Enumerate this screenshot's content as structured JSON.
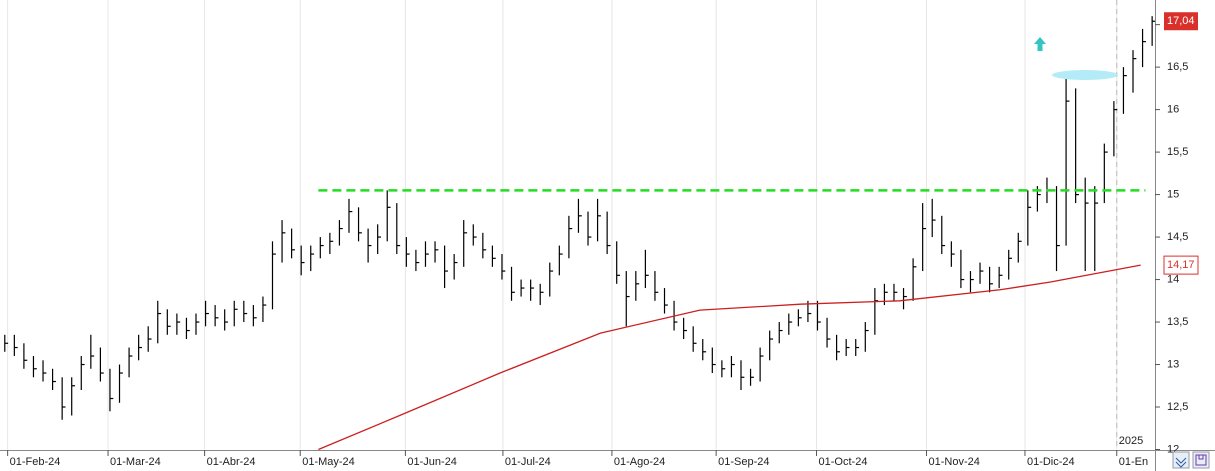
{
  "chart_data": {
    "type": "hlc",
    "color": "#000000",
    "ylim": [
      12,
      17.29
    ],
    "xlim": [
      -0.5,
      120.3
    ],
    "yticks": [
      12,
      {
        "value": 12.5,
        "label": "12,5"
      },
      13,
      {
        "value": 13.5,
        "label": "13,5"
      },
      14,
      {
        "value": 14.5,
        "label": "14,5"
      },
      15,
      {
        "value": 15.5,
        "label": "15,5"
      },
      16,
      {
        "value": 16.5,
        "label": "16,5"
      },
      17
    ],
    "xticks": [
      {
        "value": 0.3,
        "label": "01-Feb-24"
      },
      {
        "value": 10.8,
        "label": "01-Mar-24"
      },
      {
        "value": 20.9,
        "label": "01-Abr-24"
      },
      {
        "value": 30.9,
        "label": "01-May-24"
      },
      {
        "value": 41.9,
        "label": "01-Jun-24"
      },
      {
        "value": 52.1,
        "label": "01-Jul-24"
      },
      {
        "value": 63.5,
        "label": "01-Ago-24"
      },
      {
        "value": 74.4,
        "label": "01-Sep-24"
      },
      {
        "value": 84.9,
        "label": "01-Oct-24"
      },
      {
        "value": 96.4,
        "label": "01-Nov-24"
      },
      {
        "value": 106.7,
        "label": "01-Dic-24"
      },
      {
        "value": 116.3,
        "label": "01-En"
      }
    ],
    "year_label": {
      "value": 116.3,
      "label": "2025"
    },
    "high": [
      13.35,
      13.35,
      13.25,
      13.1,
      13.05,
      12.95,
      12.85,
      12.85,
      13.1,
      13.35,
      13.2,
      12.95,
      13.0,
      13.2,
      13.35,
      13.45,
      13.75,
      13.65,
      13.6,
      13.55,
      13.6,
      13.75,
      13.7,
      13.65,
      13.75,
      13.75,
      13.7,
      13.8,
      14.45,
      14.7,
      14.6,
      14.4,
      14.4,
      14.5,
      14.55,
      14.7,
      14.95,
      14.85,
      14.6,
      14.65,
      15.05,
      14.9,
      14.5,
      14.35,
      14.45,
      14.45,
      14.4,
      14.3,
      14.7,
      14.65,
      14.55,
      14.4,
      14.3,
      14.15,
      14.0,
      14.0,
      13.95,
      14.2,
      14.4,
      14.75,
      14.95,
      14.8,
      14.95,
      14.8,
      14.45,
      14.1,
      14.1,
      14.35,
      14.1,
      13.9,
      13.75,
      13.55,
      13.45,
      13.3,
      13.2,
      13.05,
      13.1,
      13.05,
      12.95,
      13.2,
      13.4,
      13.5,
      13.6,
      13.65,
      13.75,
      13.75,
      13.55,
      13.35,
      13.3,
      13.3,
      13.5,
      13.9,
      13.95,
      13.95,
      13.9,
      14.25,
      14.9,
      14.95,
      14.75,
      14.45,
      14.35,
      14.1,
      14.2,
      14.15,
      14.15,
      14.35,
      14.55,
      15.05,
      15.1,
      15.2,
      15.1,
      16.4,
      16.25,
      15.2,
      15.1,
      15.6,
      16.1,
      16.5,
      16.7,
      16.95,
      17.1
    ],
    "low": [
      13.15,
      13.1,
      12.95,
      12.85,
      12.8,
      12.7,
      12.35,
      12.4,
      12.7,
      12.95,
      12.8,
      12.45,
      12.55,
      12.85,
      13.05,
      13.15,
      13.25,
      13.35,
      13.35,
      13.3,
      13.35,
      13.45,
      13.45,
      13.4,
      13.45,
      13.5,
      13.45,
      13.5,
      13.65,
      14.2,
      14.25,
      14.05,
      14.1,
      14.25,
      14.3,
      14.4,
      14.55,
      14.45,
      14.2,
      14.3,
      14.45,
      14.3,
      14.15,
      14.1,
      14.15,
      14.2,
      13.9,
      14.0,
      14.15,
      14.4,
      14.25,
      14.15,
      14.0,
      13.75,
      13.8,
      13.75,
      13.7,
      13.8,
      14.05,
      14.25,
      14.55,
      14.4,
      14.45,
      14.3,
      13.95,
      13.45,
      13.75,
      13.9,
      13.75,
      13.6,
      13.4,
      13.3,
      13.15,
      13.05,
      12.9,
      12.85,
      12.85,
      12.7,
      12.75,
      12.8,
      13.05,
      13.25,
      13.35,
      13.45,
      13.5,
      13.4,
      13.2,
      13.05,
      13.1,
      13.1,
      13.15,
      13.35,
      13.7,
      13.75,
      13.65,
      13.75,
      14.1,
      14.5,
      14.3,
      14.15,
      13.9,
      13.85,
      13.95,
      13.85,
      13.9,
      14.0,
      14.2,
      14.4,
      14.8,
      14.9,
      14.1,
      14.4,
      14.9,
      14.1,
      14.1,
      14.9,
      15.45,
      15.95,
      16.2,
      16.5,
      16.75
    ],
    "close": [
      13.25,
      13.2,
      13.05,
      12.95,
      12.9,
      12.8,
      12.5,
      12.75,
      13.0,
      13.1,
      12.9,
      12.6,
      12.9,
      13.1,
      13.2,
      13.3,
      13.6,
      13.45,
      13.5,
      13.4,
      13.5,
      13.6,
      13.55,
      13.5,
      13.65,
      13.6,
      13.55,
      13.7,
      14.3,
      14.55,
      14.35,
      14.2,
      14.3,
      14.4,
      14.45,
      14.6,
      14.8,
      14.55,
      14.4,
      14.5,
      14.85,
      14.4,
      14.3,
      14.2,
      14.3,
      14.35,
      14.1,
      14.2,
      14.55,
      14.5,
      14.35,
      14.25,
      14.1,
      13.85,
      13.9,
      13.9,
      13.85,
      14.1,
      14.3,
      14.6,
      14.75,
      14.5,
      14.75,
      14.4,
      14.05,
      13.8,
      13.95,
      14.05,
      13.85,
      13.7,
      13.5,
      13.4,
      13.25,
      13.15,
      13.0,
      12.95,
      13.0,
      12.85,
      12.85,
      13.1,
      13.3,
      13.4,
      13.5,
      13.55,
      13.6,
      13.5,
      13.3,
      13.15,
      13.2,
      13.2,
      13.4,
      13.75,
      13.85,
      13.85,
      13.8,
      14.15,
      14.6,
      14.7,
      14.4,
      14.3,
      14.0,
      14.0,
      14.1,
      13.95,
      14.05,
      14.25,
      14.45,
      14.85,
      15.0,
      15.05,
      14.4,
      16.1,
      15.0,
      14.9,
      14.9,
      15.5,
      16.0,
      16.4,
      16.6,
      16.8,
      17.04
    ],
    "moving_average": {
      "color": "#cc1f1f",
      "x": [
        32.8,
        41.3,
        51.8,
        62.3,
        72.7,
        83.2,
        93.6,
        104.1,
        109.3,
        118.8
      ],
      "values": [
        12.0,
        12.4,
        12.9,
        13.37,
        13.64,
        13.71,
        13.75,
        13.88,
        13.97,
        14.17
      ]
    },
    "level_line": {
      "value": 15.05,
      "x": [
        32.8,
        119.3
      ],
      "color": "#22dd22"
    },
    "price_tags": [
      {
        "value": 17.04,
        "label": "17,04",
        "color": "#d9302c"
      },
      {
        "value": 14.17,
        "label": "14,17",
        "color": "#d9302c"
      }
    ]
  }
}
